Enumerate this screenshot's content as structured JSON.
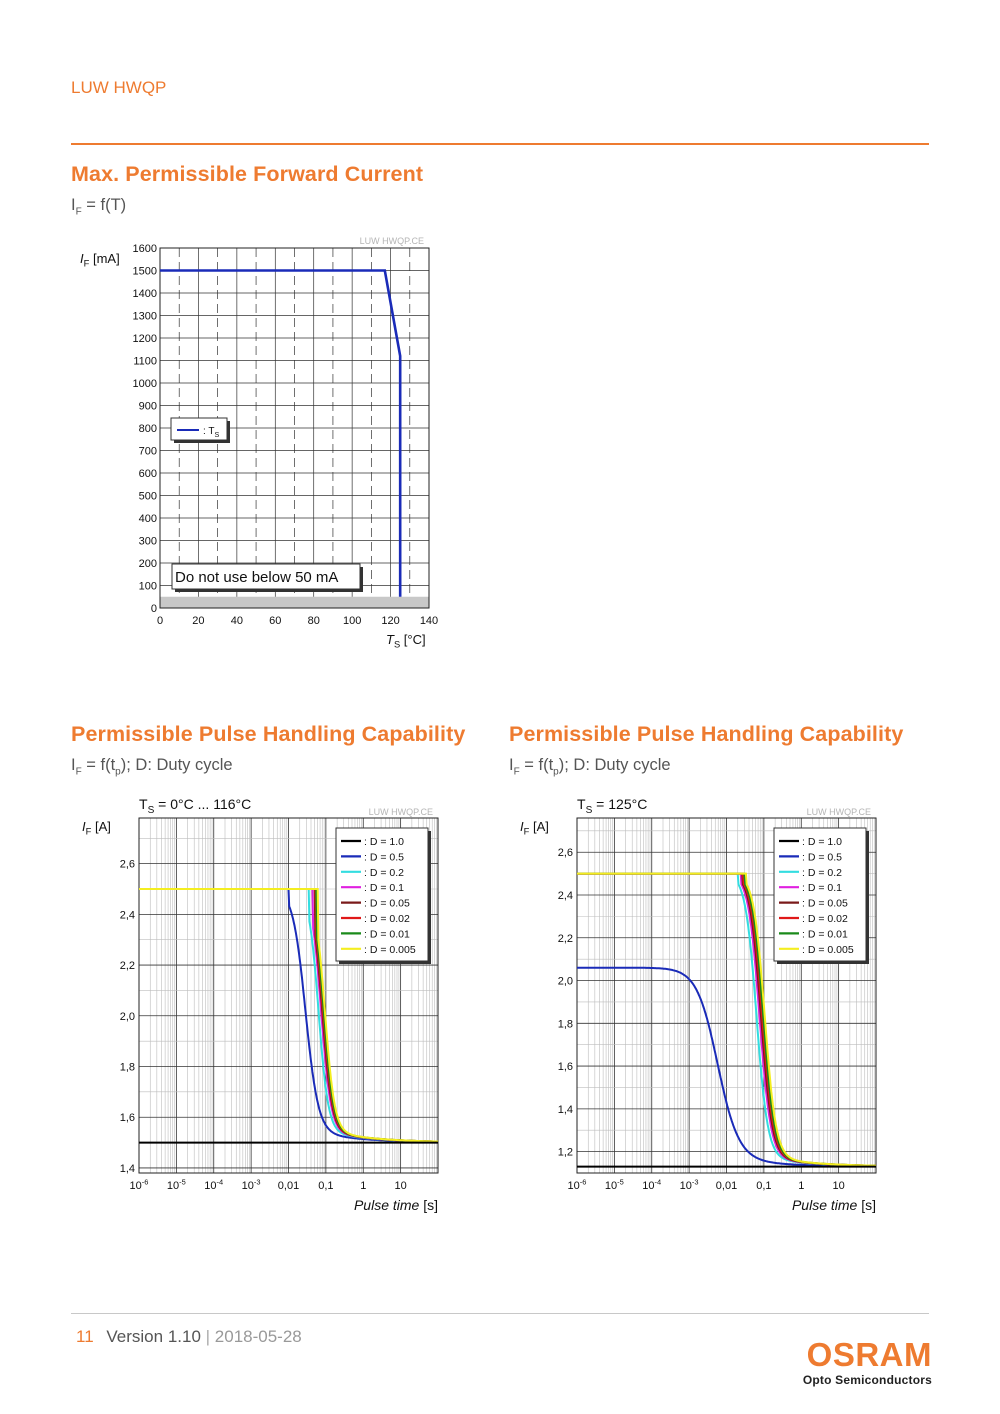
{
  "header": {
    "product": "LUW HWQP"
  },
  "section1": {
    "title": "Max. Permissible Forward Current",
    "formula_main": "I",
    "formula_sub": "F",
    "formula_rest": " = f(T)"
  },
  "section2": {
    "title": "Permissible Pulse Handling Capability",
    "formula_main": "I",
    "formula_sub": "F",
    "formula_mid": " = f(t",
    "formula_sub2": "p",
    "formula_rest": "); D: Duty cycle"
  },
  "section3": {
    "title": "Permissible Pulse Handling Capability",
    "formula_main": "I",
    "formula_sub": "F",
    "formula_mid": " = f(t",
    "formula_sub2": "p",
    "formula_rest": "); D: Duty cycle"
  },
  "chart_data": [
    {
      "type": "line",
      "watermark": "LUW HWQP.CE",
      "ylabel_main": "I",
      "ylabel_sub": "F",
      "ylabel_unit": " [mA]",
      "xlabel_main": "T",
      "xlabel_sub": "S",
      "xlabel_unit": " [°C]",
      "xlim": [
        0,
        140
      ],
      "ylim": [
        0,
        1600
      ],
      "xticks": [
        0,
        20,
        40,
        60,
        80,
        100,
        120,
        140
      ],
      "yticks": [
        0,
        100,
        200,
        300,
        400,
        500,
        600,
        700,
        800,
        900,
        1000,
        1100,
        1200,
        1300,
        1400,
        1500,
        1600
      ],
      "legend": [
        {
          "label": ": T",
          "sub": "S",
          "color": "#1a2bb8"
        }
      ],
      "annotation": "Do not use below 50 mA",
      "shaded_band": [
        0,
        50
      ],
      "series": [
        {
          "name": "T",
          "color": "#1a2bb8",
          "x": [
            0,
            117,
            125,
            125,
            125
          ],
          "y": [
            1500,
            1500,
            1120,
            1120,
            50
          ]
        }
      ]
    },
    {
      "type": "line",
      "log_x": true,
      "condition_main": "T",
      "condition_sub": "S",
      "condition_rest": " = 0°C ... 116°C",
      "watermark": "LUW HWQP.CE",
      "ylabel_main": "I",
      "ylabel_sub": "F",
      "ylabel_unit": " [A]",
      "xlabel_main": "Pulse time",
      "xlabel_unit": " [s]",
      "xlim_exp": [
        -6,
        2
      ],
      "ylim": [
        1.38,
        2.78
      ],
      "xtick_labels": [
        {
          "base": "10",
          "exp": "-6"
        },
        {
          "base": "10",
          "exp": "-5"
        },
        {
          "base": "10",
          "exp": "-4"
        },
        {
          "base": "10",
          "exp": "-3"
        },
        {
          "base": "0,01",
          "exp": ""
        },
        {
          "base": "0,1",
          "exp": ""
        },
        {
          "base": "1",
          "exp": ""
        },
        {
          "base": "10",
          "exp": ""
        }
      ],
      "yticks": [
        1.4,
        1.6,
        1.8,
        2.0,
        2.2,
        2.4,
        2.6
      ],
      "ytick_labels": [
        "1,4",
        "1,6",
        "1,8",
        "2,0",
        "2,2",
        "2,4",
        "2,6"
      ],
      "plateau": 2.5,
      "floor": 1.5,
      "series": [
        {
          "name": ": D = 1.0",
          "color": "#000000",
          "flat": 1.5
        },
        {
          "name": ": D = 0.5",
          "color": "#1a2bb8",
          "knee": -2.0,
          "mid": -1.55,
          "width": 0.17
        },
        {
          "name": ": D = 0.2",
          "color": "#33dde0",
          "knee": -1.45,
          "mid": -1.2,
          "width": 0.13
        },
        {
          "name": ": D = 0.1",
          "color": "#e020e0",
          "knee": -1.35,
          "mid": -1.13,
          "width": 0.13
        },
        {
          "name": ": D = 0.05",
          "color": "#7a1a1a",
          "knee": -1.3,
          "mid": -1.1,
          "width": 0.13
        },
        {
          "name": ": D = 0.02",
          "color": "#e01818",
          "knee": -1.27,
          "mid": -1.08,
          "width": 0.13
        },
        {
          "name": ": D = 0.01",
          "color": "#1a8a1a",
          "knee": -1.25,
          "mid": -1.06,
          "width": 0.13
        },
        {
          "name": ": D = 0.005",
          "color": "#f4ee20",
          "knee": -1.22,
          "mid": -1.03,
          "width": 0.13
        }
      ]
    },
    {
      "type": "line",
      "log_x": true,
      "condition_main": "T",
      "condition_sub": "S",
      "condition_rest": " = 125°C",
      "watermark": "LUW HWQP.CE",
      "ylabel_main": "I",
      "ylabel_sub": "F",
      "ylabel_unit": " [A]",
      "xlabel_main": "Pulse time",
      "xlabel_unit": " [s]",
      "xlim_exp": [
        -6,
        2
      ],
      "ylim": [
        1.1,
        2.76
      ],
      "xtick_labels": [
        {
          "base": "10",
          "exp": "-6"
        },
        {
          "base": "10",
          "exp": "-5"
        },
        {
          "base": "10",
          "exp": "-4"
        },
        {
          "base": "10",
          "exp": "-3"
        },
        {
          "base": "0,01",
          "exp": ""
        },
        {
          "base": "0,1",
          "exp": ""
        },
        {
          "base": "1",
          "exp": ""
        },
        {
          "base": "10",
          "exp": ""
        }
      ],
      "yticks": [
        1.2,
        1.4,
        1.6,
        1.8,
        2.0,
        2.2,
        2.4,
        2.6
      ],
      "ytick_labels": [
        "1,2",
        "1,4",
        "1,6",
        "1,8",
        "2,0",
        "2,2",
        "2,4",
        "2,6"
      ],
      "plateau": 2.5,
      "floor": 1.13,
      "series": [
        {
          "name": ": D = 1.0",
          "color": "#000000",
          "flat": 1.13
        },
        {
          "name": ": D = 0.5",
          "color": "#1a2bb8",
          "plateau": 2.06,
          "knee": -3.6,
          "mid": -2.25,
          "width": 0.28
        },
        {
          "name": ": D = 0.2",
          "color": "#33dde0",
          "knee": -1.7,
          "mid": -1.2,
          "width": 0.15
        },
        {
          "name": ": D = 0.1",
          "color": "#e020e0",
          "knee": -1.62,
          "mid": -1.12,
          "width": 0.15
        },
        {
          "name": ": D = 0.05",
          "color": "#7a1a1a",
          "knee": -1.58,
          "mid": -1.08,
          "width": 0.15
        },
        {
          "name": ": D = 0.02",
          "color": "#e01818",
          "knee": -1.55,
          "mid": -1.05,
          "width": 0.15
        },
        {
          "name": ": D = 0.01",
          "color": "#1a8a1a",
          "knee": -1.52,
          "mid": -1.02,
          "width": 0.15
        },
        {
          "name": ": D = 0.005",
          "color": "#f4ee20",
          "knee": -1.48,
          "mid": -0.98,
          "width": 0.15
        }
      ]
    }
  ],
  "footer": {
    "page": "11",
    "version": "Version 1.10",
    "separator": "|",
    "date": "2018-05-28"
  },
  "logo": {
    "brand": "OSRAM",
    "sub": "Opto Semiconductors"
  }
}
